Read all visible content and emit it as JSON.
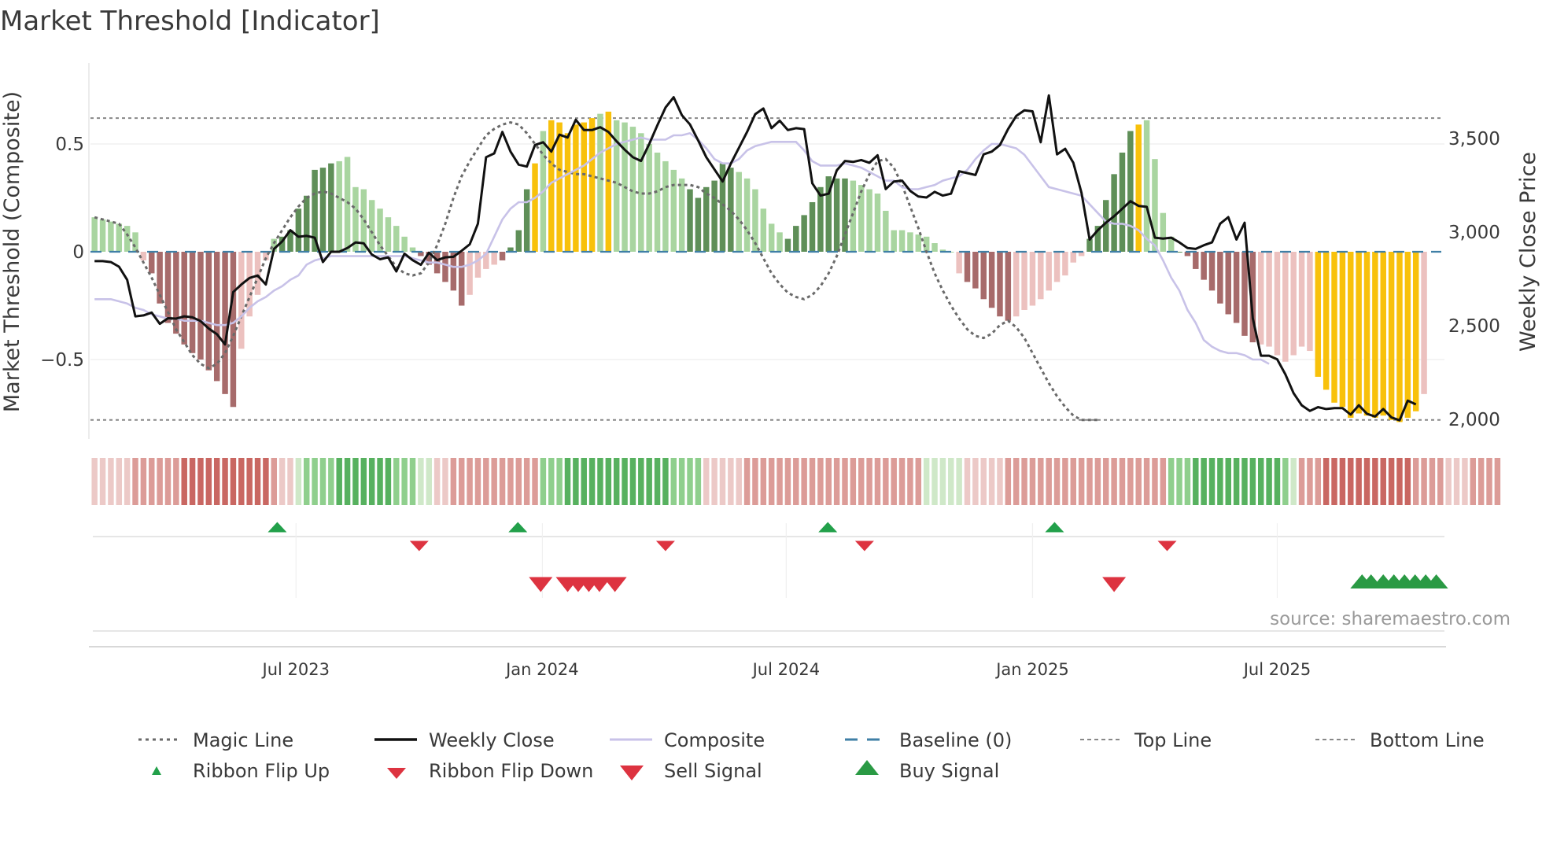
{
  "title": "Market Threshold [Indicator]",
  "source": "source: sharemaestro.com",
  "colors": {
    "strong_up": "#5f8f58",
    "weak_up": "#a9d5a0",
    "strong_down": "#a76b6b",
    "weak_down": "#ecc1bf",
    "extreme": "#f8c10b",
    "close": "#111111",
    "composite": "#c8c2e8",
    "magic": "#6a6a6a",
    "baseline": "#3f7fa6",
    "threshold": "#888888",
    "flip_up": "#22a04a",
    "flip_down": "#dd3340",
    "sell": "#dd3340",
    "buy": "#2a9a44"
  },
  "chart_data": {
    "type": "bar",
    "title": "Market Threshold [Indicator]",
    "ylabel": "Market Threshold (Composite)",
    "y2label": "Weekly Close Price",
    "ylim": [
      -0.88,
      0.88
    ],
    "y2lim": [
      1975,
      3825
    ],
    "yticks": [
      {
        "v": 0.5,
        "label": "0.5"
      },
      {
        "v": 0,
        "label": "0"
      },
      {
        "v": -0.5,
        "label": "−0.5"
      }
    ],
    "y2ticks": [
      {
        "v": 3500,
        "label": "3,500"
      },
      {
        "v": 3000,
        "label": "3,000"
      },
      {
        "v": 2500,
        "label": "2,500"
      },
      {
        "v": 2000,
        "label": "2,000"
      }
    ],
    "xticks": [
      {
        "week": 24.7,
        "label": "Jul 2023"
      },
      {
        "week": 54.9,
        "label": "Jan 2024"
      },
      {
        "week": 84.8,
        "label": "Jul 2024"
      },
      {
        "week": 115.0,
        "label": "Jan 2025"
      },
      {
        "week": 145.0,
        "label": "Jul 2025"
      }
    ],
    "n_weeks": 166,
    "top_line": 0.62,
    "bottom_line": -0.78,
    "composite_bars": [
      0.16,
      0.15,
      0.14,
      0.13,
      0.12,
      0.09,
      -0.04,
      -0.1,
      -0.24,
      -0.33,
      -0.38,
      -0.43,
      -0.47,
      -0.5,
      -0.55,
      -0.6,
      -0.66,
      -0.72,
      -0.45,
      -0.3,
      -0.2,
      -0.04,
      0.06,
      0.07,
      0.1,
      0.2,
      0.26,
      0.38,
      0.39,
      0.41,
      0.42,
      0.44,
      0.3,
      0.29,
      0.24,
      0.2,
      0.16,
      0.12,
      0.07,
      0.02,
      -0.02,
      -0.06,
      -0.1,
      -0.14,
      -0.18,
      -0.25,
      -0.2,
      -0.12,
      -0.08,
      -0.06,
      -0.04,
      0.02,
      0.1,
      0.29,
      0.41,
      0.56,
      0.61,
      0.6,
      0.55,
      0.59,
      0.6,
      0.62,
      0.64,
      0.65,
      0.61,
      0.6,
      0.58,
      0.55,
      0.5,
      0.46,
      0.42,
      0.38,
      0.34,
      0.29,
      0.25,
      0.3,
      0.33,
      0.41,
      0.39,
      0.37,
      0.34,
      0.29,
      0.2,
      0.13,
      0.09,
      0.06,
      0.12,
      0.17,
      0.23,
      0.3,
      0.35,
      0.34,
      0.34,
      0.33,
      0.31,
      0.29,
      0.27,
      0.19,
      0.1,
      0.1,
      0.09,
      0.08,
      0.07,
      0.04,
      0.01,
      0.0,
      -0.1,
      -0.14,
      -0.17,
      -0.22,
      -0.26,
      -0.3,
      -0.32,
      -0.3,
      -0.27,
      -0.25,
      -0.22,
      -0.18,
      -0.14,
      -0.11,
      -0.05,
      -0.02,
      0.06,
      0.12,
      0.24,
      0.36,
      0.46,
      0.56,
      0.59,
      0.61,
      0.43,
      0.18,
      0.07,
      0.0,
      -0.02,
      -0.08,
      -0.13,
      -0.18,
      -0.24,
      -0.29,
      -0.33,
      -0.39,
      -0.42,
      -0.43,
      -0.44,
      -0.48,
      -0.51,
      -0.48,
      -0.44,
      -0.46,
      -0.58,
      -0.64,
      -0.7,
      -0.72,
      -0.77,
      -0.75,
      -0.76,
      -0.77,
      -0.76,
      -0.78,
      -0.79,
      -0.77,
      -0.74,
      -0.66
    ],
    "bar_classes": "wwwwwwwssssssssssswwwwwssssssswwwwwwwwwwsssssswwwwssssxwxxxxxxwxwwwwwwwwwsssssswwwwwwsssssssswwwwwwwwwwwwwwsssssswwwwwwwwwssssssxwwwwsssssssssswwwwwwwxxxxxxxxxxxxx",
    "weekly_close": [
      2845,
      2845,
      2840,
      2815,
      2745,
      2550,
      2555,
      2570,
      2510,
      2540,
      2538,
      2550,
      2545,
      2525,
      2485,
      2455,
      2400,
      2680,
      2720,
      2755,
      2768,
      2720,
      2910,
      2950,
      3010,
      2975,
      2980,
      2970,
      2840,
      2895,
      2895,
      2915,
      2945,
      2940,
      2880,
      2855,
      2865,
      2790,
      2885,
      2850,
      2825,
      2890,
      2850,
      2865,
      2868,
      2900,
      2935,
      3045,
      3400,
      3420,
      3535,
      3430,
      3360,
      3350,
      3465,
      3480,
      3430,
      3520,
      3505,
      3600,
      3545,
      3545,
      3560,
      3535,
      3485,
      3440,
      3400,
      3380,
      3470,
      3570,
      3665,
      3720,
      3625,
      3575,
      3490,
      3400,
      3335,
      3270,
      3365,
      3450,
      3535,
      3630,
      3660,
      3555,
      3595,
      3545,
      3555,
      3550,
      3260,
      3195,
      3205,
      3330,
      3380,
      3375,
      3385,
      3370,
      3410,
      3230,
      3270,
      3275,
      3220,
      3190,
      3185,
      3215,
      3195,
      3205,
      3325,
      3315,
      3305,
      3415,
      3430,
      3465,
      3550,
      3620,
      3650,
      3645,
      3480,
      3730,
      3415,
      3445,
      3370,
      3210,
      2960,
      3010,
      3050,
      3085,
      3125,
      3165,
      3140,
      3135,
      2970,
      2965,
      2970,
      2945,
      2915,
      2910,
      2930,
      2945,
      3045,
      3080,
      2960,
      3050,
      2540,
      2340,
      2340,
      2320,
      2240,
      2140,
      2075,
      2045,
      2065,
      2055,
      2060,
      2060,
      2025,
      2075,
      2030,
      2015,
      2055,
      2010,
      1995,
      2100,
      2080
    ],
    "composite_line": [
      -0.22,
      -0.22,
      -0.22,
      -0.23,
      -0.24,
      -0.26,
      -0.27,
      -0.29,
      -0.3,
      -0.31,
      -0.31,
      -0.32,
      -0.32,
      -0.32,
      -0.33,
      -0.34,
      -0.34,
      -0.33,
      -0.3,
      -0.26,
      -0.23,
      -0.21,
      -0.18,
      -0.16,
      -0.13,
      -0.11,
      -0.06,
      -0.04,
      -0.03,
      -0.02,
      -0.02,
      -0.02,
      -0.02,
      -0.02,
      -0.02,
      -0.02,
      -0.02,
      -0.02,
      -0.02,
      -0.03,
      -0.04,
      -0.05,
      -0.05,
      -0.06,
      -0.07,
      -0.07,
      -0.06,
      -0.04,
      -0.01,
      0.07,
      0.15,
      0.2,
      0.23,
      0.23,
      0.25,
      0.28,
      0.32,
      0.34,
      0.36,
      0.38,
      0.4,
      0.43,
      0.46,
      0.48,
      0.5,
      0.51,
      0.52,
      0.53,
      0.52,
      0.52,
      0.52,
      0.54,
      0.54,
      0.55,
      0.52,
      0.48,
      0.43,
      0.41,
      0.41,
      0.43,
      0.47,
      0.49,
      0.5,
      0.51,
      0.51,
      0.51,
      0.51,
      0.47,
      0.42,
      0.4,
      0.4,
      0.4,
      0.41,
      0.4,
      0.39,
      0.37,
      0.35,
      0.33,
      0.33,
      0.3,
      0.29,
      0.29,
      0.3,
      0.31,
      0.33,
      0.34,
      0.35,
      0.38,
      0.43,
      0.47,
      0.5,
      0.5,
      0.49,
      0.48,
      0.45,
      0.4,
      0.35,
      0.3,
      0.29,
      0.28,
      0.27,
      0.26,
      0.22,
      0.18,
      0.14,
      0.13,
      0.13,
      0.12,
      0.1,
      0.06,
      0.03,
      -0.04,
      -0.12,
      -0.18,
      -0.27,
      -0.33,
      -0.41,
      -0.44,
      -0.46,
      -0.47,
      -0.47,
      -0.48,
      -0.5,
      -0.5,
      -0.52
    ],
    "magic_line": [
      0.16,
      0.15,
      0.14,
      0.13,
      0.08,
      0.02,
      -0.05,
      -0.12,
      -0.2,
      -0.28,
      -0.36,
      -0.42,
      -0.48,
      -0.52,
      -0.54,
      -0.52,
      -0.47,
      -0.39,
      -0.3,
      -0.21,
      -0.12,
      -0.03,
      0.04,
      0.1,
      0.16,
      0.21,
      0.25,
      0.27,
      0.28,
      0.27,
      0.25,
      0.23,
      0.2,
      0.15,
      0.09,
      0.03,
      -0.02,
      -0.07,
      -0.1,
      -0.11,
      -0.1,
      -0.05,
      0.03,
      0.13,
      0.25,
      0.35,
      0.42,
      0.48,
      0.54,
      0.57,
      0.59,
      0.6,
      0.59,
      0.55,
      0.5,
      0.45,
      0.41,
      0.38,
      0.37,
      0.36,
      0.36,
      0.35,
      0.34,
      0.33,
      0.32,
      0.3,
      0.28,
      0.27,
      0.27,
      0.28,
      0.3,
      0.31,
      0.31,
      0.31,
      0.3,
      0.27,
      0.25,
      0.22,
      0.19,
      0.15,
      0.1,
      0.04,
      -0.03,
      -0.1,
      -0.15,
      -0.19,
      -0.21,
      -0.22,
      -0.2,
      -0.16,
      -0.1,
      -0.02,
      0.08,
      0.18,
      0.28,
      0.36,
      0.42,
      0.43,
      0.39,
      0.31,
      0.21,
      0.11,
      0.0,
      -0.1,
      -0.18,
      -0.25,
      -0.31,
      -0.36,
      -0.39,
      -0.4,
      -0.38,
      -0.34,
      -0.32,
      -0.35,
      -0.4,
      -0.47,
      -0.54,
      -0.61,
      -0.67,
      -0.72,
      -0.76,
      -0.78,
      -0.78,
      -0.78
    ],
    "ribbon_states": "weak_down,weak_down,weak_down,weak_down,weak_down,mid_down,mid_down,mid_down,mid_down,mid_down,mid_down,strong_down,strong_down,strong_down,strong_down,strong_down,strong_down,strong_down,strong_down,strong_down,strong_down,strong_down,mid_down,weak_down,weak_down,weak_up,mid_up,mid_up,mid_up,mid_up,strong_up,strong_up,strong_up,strong_up,strong_up,strong_up,strong_up,mid_up,mid_up,mid_up,weak_up,weak_up,weak_down,weak_down,mid_down,mid_down,mid_down,mid_down,mid_down,mid_down,mid_down,mid_down,mid_down,mid_down,mid_down,mid_up,mid_up,mid_up,strong_up,strong_up,strong_up,strong_up,strong_up,strong_up,strong_up,strong_up,strong_up,strong_up,strong_up,strong_up,strong_up,mid_up,mid_up,mid_up,mid_up,weak_down,weak_down,weak_down,weak_down,weak_down,mid_down,mid_down,mid_down,mid_down,mid_down,mid_down,mid_down,mid_down,mid_down,mid_down,mid_down,mid_down,mid_down,mid_down,mid_down,mid_down,mid_down,mid_down,mid_down,mid_down,mid_down,mid_down,weak_up,weak_up,weak_up,weak_up,weak_up,weak_down,weak_down,weak_down,weak_down,weak_down,mid_down,mid_down,mid_down,mid_down,mid_down,mid_down,mid_down,mid_down,mid_down,mid_down,mid_down,mid_down,mid_down,mid_down,mid_down,mid_down,mid_down,mid_down,mid_down,mid_down,mid_up,mid_up,mid_up,strong_up,strong_up,strong_up,strong_up,strong_up,strong_up,strong_up,strong_up,strong_up,strong_up,strong_up,mid_up,weak_up,mid_down,mid_down,mid_down,strong_down,strong_down,strong_down,strong_down,strong_down,strong_down,strong_down,strong_down,strong_down,strong_down,strong_down,mid_down,mid_down,mid_down,mid_down,weak_down,weak_down,weak_down,mid_down,mid_down,mid_down,mid_down",
    "flip_up_weeks": [
      22.4,
      51.9,
      89.9,
      117.7
    ],
    "flip_down_weeks": [
      39.8,
      70.0,
      94.4,
      131.5
    ],
    "sell_signal_weeks": [
      54.7,
      58.0,
      59.3,
      60.6,
      61.9,
      63.8,
      125.0
    ],
    "buy_signal_weeks": [
      155.4,
      156.5,
      158.0,
      159.3,
      160.6,
      161.9,
      163.2,
      164.5
    ]
  },
  "legend": [
    {
      "label": "Magic Line",
      "icon": "magic-line-icon"
    },
    {
      "label": "Weekly Close",
      "icon": "weekly-close-icon"
    },
    {
      "label": "Composite",
      "icon": "composite-icon"
    },
    {
      "label": "Baseline (0)",
      "icon": "baseline-icon"
    },
    {
      "label": "Top Line",
      "icon": "top-line-icon"
    },
    {
      "label": "Bottom Line",
      "icon": "bottom-line-icon"
    },
    {
      "label": "Ribbon Flip Up",
      "icon": "triangle-up-icon"
    },
    {
      "label": "Ribbon Flip Down",
      "icon": "triangle-down-icon"
    },
    {
      "label": "Sell Signal",
      "icon": "sell-triangle-icon"
    },
    {
      "label": "Buy Signal",
      "icon": "buy-triangle-icon"
    }
  ]
}
